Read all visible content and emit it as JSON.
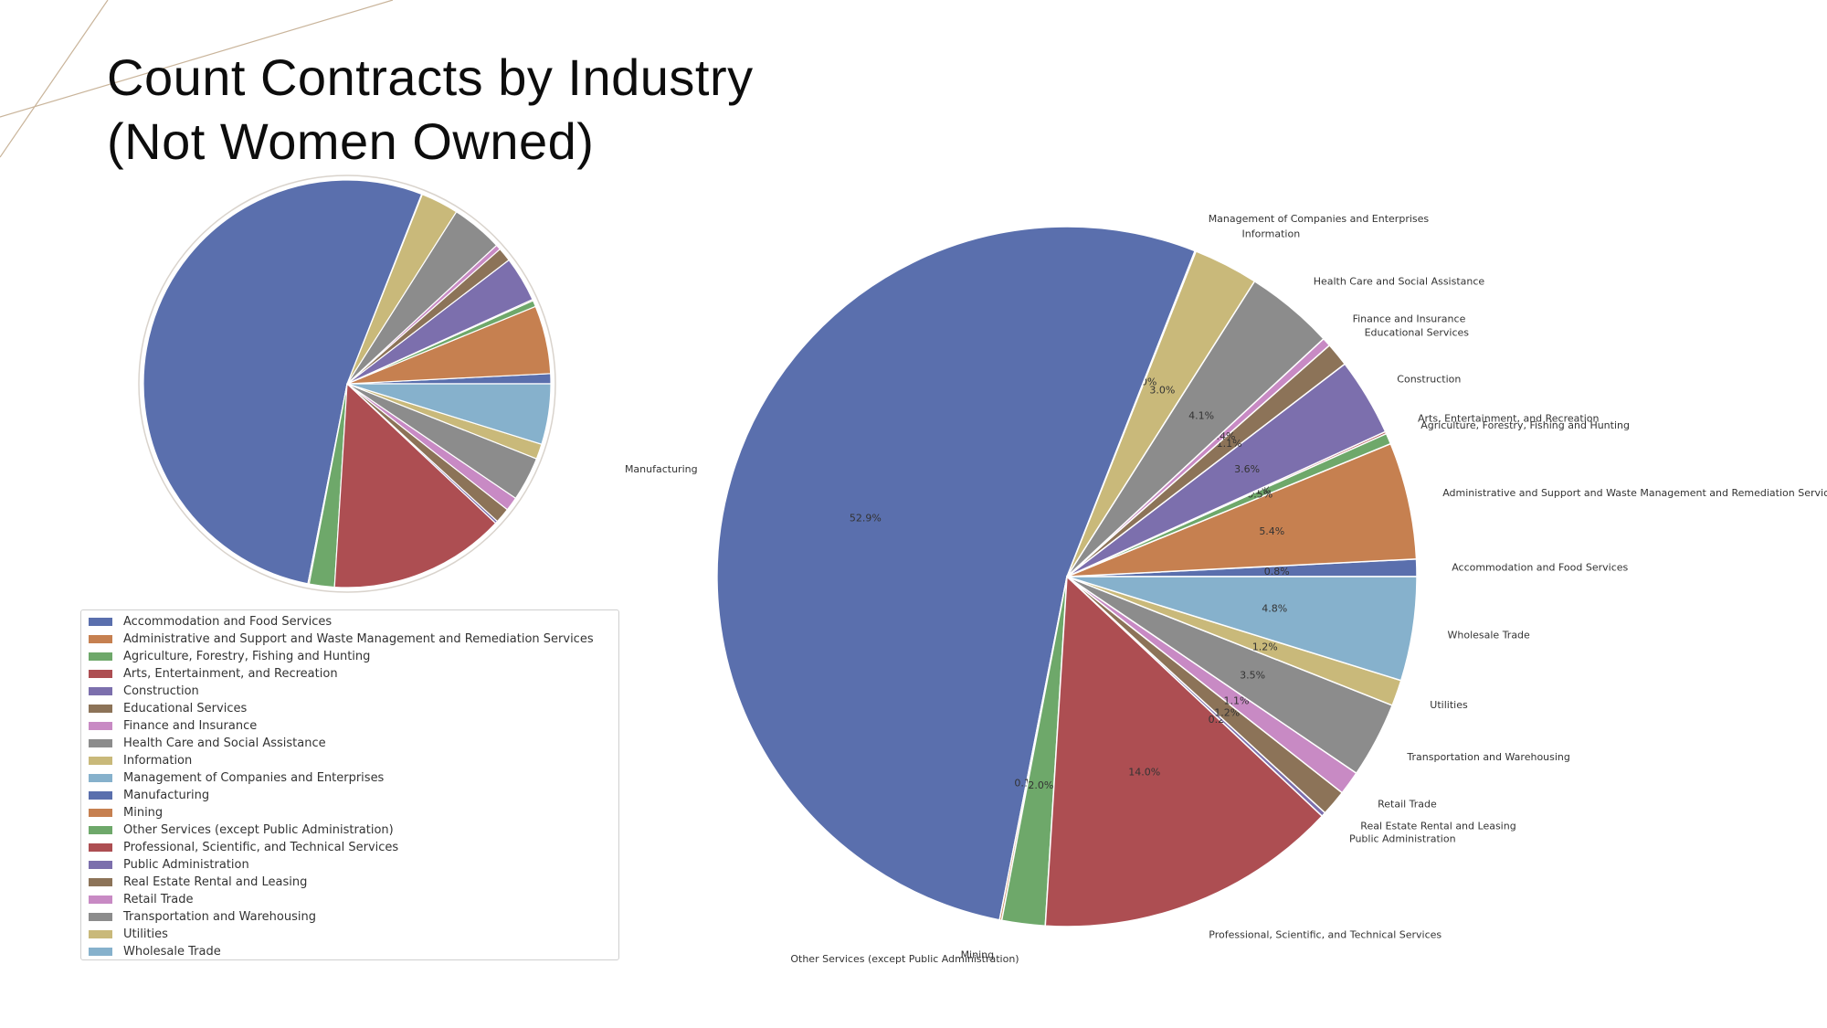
{
  "title": {
    "line1": "Count Contracts by Industry",
    "line2": "(Not Women Owned)"
  },
  "chart_data": {
    "type": "pie",
    "start_angle_deg": 0,
    "direction": "counterclockwise",
    "slices": [
      {
        "label": "Accommodation and Food Services",
        "value": 0.8,
        "pct_label": "0.8%",
        "color": "#5a6fad"
      },
      {
        "label": "Administrative and Support and Waste Management and Remediation Services",
        "value": 5.4,
        "pct_label": "5.4%",
        "color": "#c68050"
      },
      {
        "label": "Agriculture, Forestry, Fishing and Hunting",
        "value": 0.5,
        "pct_label": "0.5%",
        "color": "#6ea86a"
      },
      {
        "label": "Arts, Entertainment, and Recreation",
        "value": 0.1,
        "pct_label": "0.1%",
        "color": "#ad4e52"
      },
      {
        "label": "Construction",
        "value": 3.6,
        "pct_label": "3.6%",
        "color": "#7c6fad"
      },
      {
        "label": "Educational Services",
        "value": 1.1,
        "pct_label": "1.1%",
        "color": "#8c7358"
      },
      {
        "label": "Finance and Insurance",
        "value": 0.4,
        "pct_label": "0.4%",
        "color": "#c88ac4"
      },
      {
        "label": "Health Care and Social Assistance",
        "value": 4.1,
        "pct_label": "4.1%",
        "color": "#8c8c8c"
      },
      {
        "label": "Information",
        "value": 3.0,
        "pct_label": "3.0%",
        "color": "#c9b97a"
      },
      {
        "label": "Management of Companies and Enterprises",
        "value": 0.05,
        "pct_label": "0.0%",
        "color": "#86b1cc"
      },
      {
        "label": "Manufacturing",
        "value": 52.9,
        "pct_label": "52.9%",
        "color": "#5a6fad"
      },
      {
        "label": "Mining",
        "value": 0.1,
        "pct_label": "0.1%",
        "color": "#c68050"
      },
      {
        "label": "Other Services (except Public Administration)",
        "value": 2.0,
        "pct_label": "2.0%",
        "color": "#6ea86a"
      },
      {
        "label": "Professional, Scientific, and Technical Services",
        "value": 14.0,
        "pct_label": "14.0%",
        "color": "#ad4e52"
      },
      {
        "label": "Public Administration",
        "value": 0.2,
        "pct_label": "0.2%",
        "color": "#7c6fad"
      },
      {
        "label": "Real Estate Rental and Leasing",
        "value": 1.2,
        "pct_label": "1.2%",
        "color": "#8c7358"
      },
      {
        "label": "Retail Trade",
        "value": 1.1,
        "pct_label": "1.1%",
        "color": "#c88ac4"
      },
      {
        "label": "Transportation and Warehousing",
        "value": 3.5,
        "pct_label": "3.5%",
        "color": "#8c8c8c"
      },
      {
        "label": "Utilities",
        "value": 1.2,
        "pct_label": "1.2%",
        "color": "#c9b97a"
      },
      {
        "label": "Wholesale Trade",
        "value": 4.8,
        "pct_label": "4.8%",
        "color": "#86b1cc"
      }
    ],
    "legend_placement": "below left pie"
  }
}
